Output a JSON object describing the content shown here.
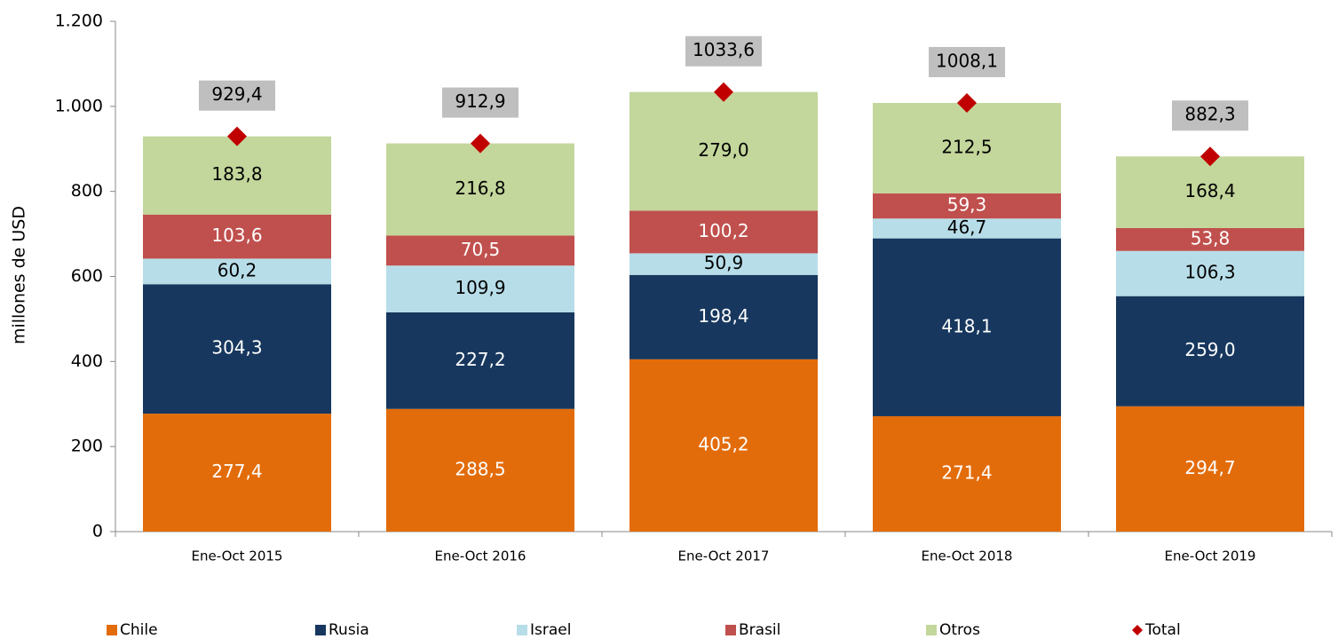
{
  "chart_data": {
    "type": "stacked_bar",
    "y_label": "millones de  USD",
    "categories": [
      "Ene-Oct 2015",
      "Ene-Oct 2016",
      "Ene-Oct 2017",
      "Ene-Oct 2018",
      "Ene-Oct 2019"
    ],
    "series": [
      {
        "name": "Chile",
        "color": "#e36c0a",
        "label_color": "#ffffff",
        "values": [
          277.4,
          288.5,
          405.2,
          271.4,
          294.7
        ],
        "value_labels": [
          "277,4",
          "288,5",
          "405,2",
          "271,4",
          "294,7"
        ]
      },
      {
        "name": "Rusia",
        "color": "#17375e",
        "label_color": "#ffffff",
        "values": [
          304.3,
          227.2,
          198.4,
          418.1,
          259.0
        ],
        "value_labels": [
          "304,3",
          "227,2",
          "198,4",
          "418,1",
          "259,0"
        ]
      },
      {
        "name": "Israel",
        "color": "#b7dde8",
        "label_color": "#000000",
        "values": [
          60.2,
          109.9,
          50.9,
          46.7,
          106.3
        ],
        "value_labels": [
          "60,2",
          "109,9",
          "50,9",
          "46,7",
          "106,3"
        ]
      },
      {
        "name": "Brasil",
        "color": "#c0504d",
        "label_color": "#ffffff",
        "values": [
          103.6,
          70.5,
          100.2,
          59.3,
          53.8
        ],
        "value_labels": [
          "103,6",
          "70,5",
          "100,2",
          "59,3",
          "53,8"
        ]
      },
      {
        "name": "Otros",
        "color": "#c3d69b",
        "label_color": "#000000",
        "values": [
          183.8,
          216.8,
          279.0,
          212.5,
          168.4
        ],
        "value_labels": [
          "183,8",
          "216,8",
          "279,0",
          "212,5",
          "168,4"
        ]
      },
      {
        "name": "Total",
        "color": "#c00000",
        "label_color": "#000000",
        "marker": "diamond",
        "values": [
          929.4,
          912.9,
          1033.6,
          1008.1,
          882.3
        ],
        "value_labels": [
          "929,4",
          "912,9",
          "1033,6",
          "1008,1",
          "882,3"
        ]
      }
    ],
    "ylim": [
      0,
      1200
    ],
    "yticks": [
      0,
      200,
      400,
      600,
      800,
      {
        "value": 1000,
        "label": "1.000"
      },
      {
        "value": 1200,
        "label": "1.200"
      }
    ],
    "legend": "bottom"
  }
}
